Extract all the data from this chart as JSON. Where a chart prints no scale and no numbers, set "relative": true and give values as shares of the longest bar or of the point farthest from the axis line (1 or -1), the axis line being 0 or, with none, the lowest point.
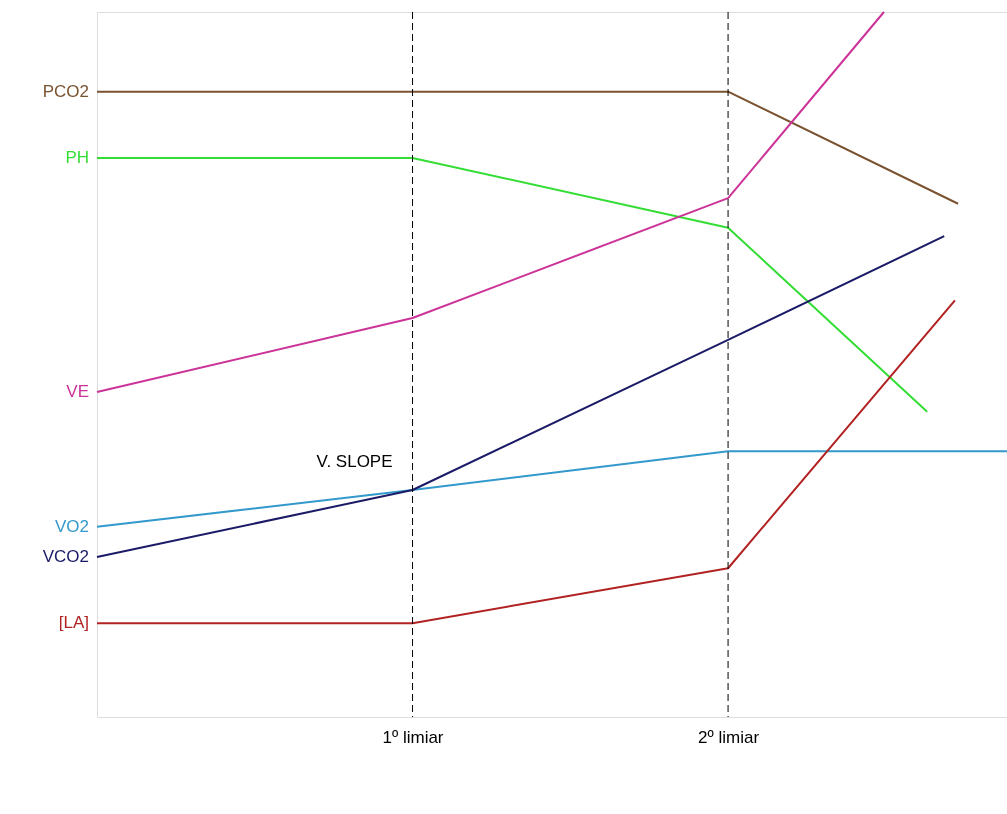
{
  "chart_data": {
    "type": "line",
    "relative": true,
    "grid": false,
    "marker": "none",
    "line_style": "solid",
    "xlim": [
      0,
      2.884
    ],
    "xticks": [
      {
        "value": 1,
        "label": "1º limiar"
      },
      {
        "value": 2,
        "label": "2º limiar"
      }
    ],
    "tick_labels": "x",
    "series": [
      {
        "name": "PCO2",
        "color": "#7a5230",
        "x": [
          0,
          2,
          2.729
        ],
        "values": [
          0.887,
          0.887,
          0.728
        ]
      },
      {
        "name": "PH",
        "color": "#33dd33",
        "x": [
          0,
          1,
          2,
          2.631
        ],
        "values": [
          0.793,
          0.793,
          0.694,
          0.433
        ]
      },
      {
        "name": "VE",
        "color": "#cc3399",
        "x": [
          0,
          1,
          2,
          2.494
        ],
        "values": [
          0.461,
          0.566,
          0.736,
          1
        ]
      },
      {
        "name": "VO2",
        "color": "#3399cc",
        "x": [
          0,
          1,
          2,
          2.884
        ],
        "values": [
          0.27,
          0.322,
          0.377,
          0.377
        ]
      },
      {
        "name": "VCO2",
        "color": "#1a1a66",
        "x": [
          0,
          1,
          2,
          2.685
        ],
        "values": [
          0.227,
          0.322,
          0.535,
          0.682
        ]
      },
      {
        "name": "[LA]",
        "color": "#b22222",
        "x": [
          0,
          1,
          2,
          2.719
        ],
        "values": [
          0.133,
          0.133,
          0.211,
          0.591
        ]
      }
    ],
    "ref_lines": [
      {
        "axis": "x",
        "value": 1,
        "label": null,
        "color": "#000000",
        "line_style": "dashed"
      },
      {
        "axis": "x",
        "value": 2,
        "label": null,
        "color": "#000000",
        "line_style": "dashed"
      }
    ],
    "annotations": [
      {
        "text": "V. SLOPE",
        "x": 1,
        "y": 0.322
      }
    ]
  }
}
